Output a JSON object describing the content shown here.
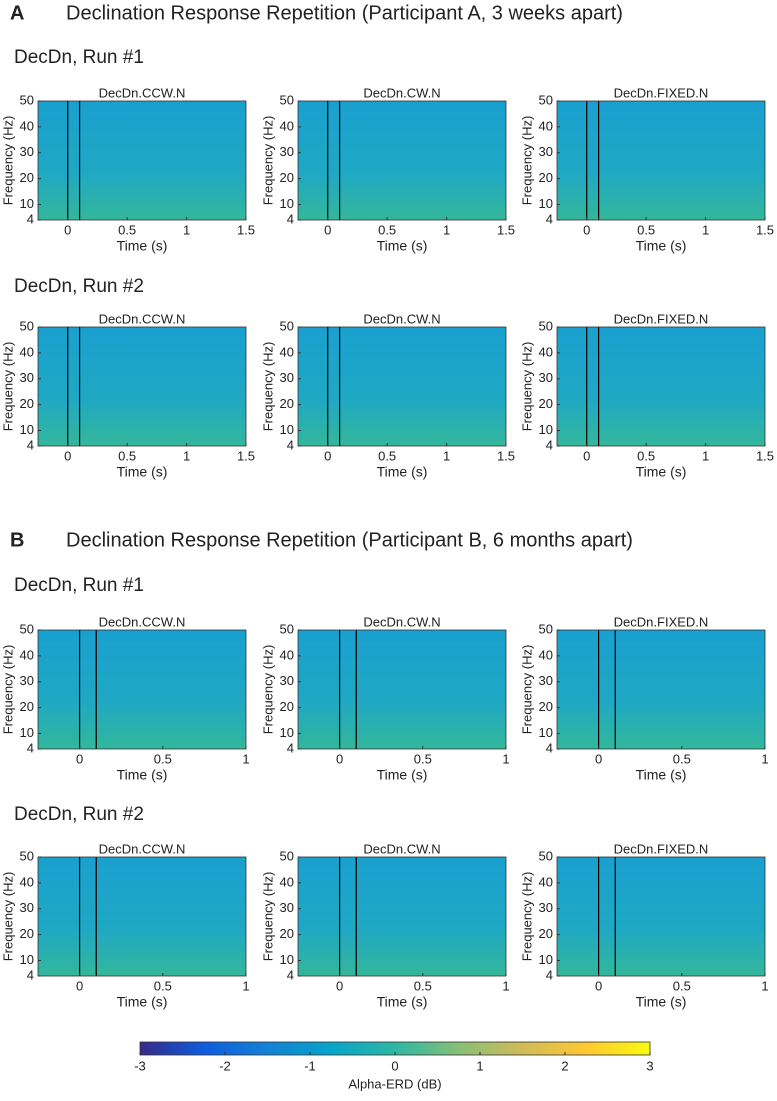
{
  "sections": [
    {
      "letter": "A",
      "title": "Declination Response Repetition (Participant A, 3 weeks apart)",
      "runs": [
        {
          "title": "DecDn, Run #1"
        },
        {
          "title": "DecDn, Run #2"
        }
      ]
    },
    {
      "letter": "B",
      "title": "Declination Response Repetition (Participant B, 6 months apart)",
      "runs": [
        {
          "title": "DecDn, Run #1"
        },
        {
          "title": "DecDn, Run #2"
        }
      ]
    }
  ],
  "chart_data": [
    {
      "type": "heatmap",
      "title": "DecDn.CCW.N",
      "xlabel": "Time (s)",
      "ylabel": "Frequency (Hz)",
      "xlim": [
        -0.25,
        1.5
      ],
      "xticks": [
        0,
        0.5,
        1,
        1.5
      ],
      "ylim": [
        4,
        50
      ],
      "yticks": [
        4,
        10,
        20,
        30,
        40,
        50
      ],
      "event_lines": [
        0,
        0.1
      ]
    },
    {
      "type": "heatmap",
      "title": "DecDn.CW.N",
      "xlabel": "Time (s)",
      "ylabel": "Frequency (Hz)",
      "xlim": [
        -0.25,
        1.5
      ],
      "xticks": [
        0,
        0.5,
        1,
        1.5
      ],
      "ylim": [
        4,
        50
      ],
      "yticks": [
        4,
        10,
        20,
        30,
        40,
        50
      ],
      "event_lines": [
        0,
        0.1
      ]
    },
    {
      "type": "heatmap",
      "title": "DecDn.FIXED.N",
      "xlabel": "Time (s)",
      "ylabel": "Frequency (Hz)",
      "xlim": [
        -0.25,
        1.5
      ],
      "xticks": [
        0,
        0.5,
        1,
        1.5
      ],
      "ylim": [
        4,
        50
      ],
      "yticks": [
        4,
        10,
        20,
        30,
        40,
        50
      ],
      "event_lines": [
        0,
        0.1
      ]
    },
    {
      "type": "heatmap",
      "title": "DecDn.CCW.N",
      "xlabel": "Time (s)",
      "ylabel": "Frequency (Hz)",
      "xlim": [
        -0.25,
        1.5
      ],
      "xticks": [
        0,
        0.5,
        1,
        1.5
      ],
      "ylim": [
        4,
        50
      ],
      "yticks": [
        4,
        10,
        20,
        30,
        40,
        50
      ],
      "event_lines": [
        0,
        0.1
      ]
    },
    {
      "type": "heatmap",
      "title": "DecDn.CW.N",
      "xlabel": "Time (s)",
      "ylabel": "Frequency (Hz)",
      "xlim": [
        -0.25,
        1.5
      ],
      "xticks": [
        0,
        0.5,
        1,
        1.5
      ],
      "ylim": [
        4,
        50
      ],
      "yticks": [
        4,
        10,
        20,
        30,
        40,
        50
      ],
      "event_lines": [
        0,
        0.1
      ]
    },
    {
      "type": "heatmap",
      "title": "DecDn.FIXED.N",
      "xlabel": "Time (s)",
      "ylabel": "Frequency (Hz)",
      "xlim": [
        -0.25,
        1.5
      ],
      "xticks": [
        0,
        0.5,
        1,
        1.5
      ],
      "ylim": [
        4,
        50
      ],
      "yticks": [
        4,
        10,
        20,
        30,
        40,
        50
      ],
      "event_lines": [
        0,
        0.1
      ]
    },
    {
      "type": "heatmap",
      "title": "DecDn.CCW.N",
      "xlabel": "Time (s)",
      "ylabel": "Frequency (Hz)",
      "xlim": [
        -0.25,
        1
      ],
      "xticks": [
        0,
        0.5,
        1
      ],
      "ylim": [
        4,
        50
      ],
      "yticks": [
        4,
        10,
        20,
        30,
        40,
        50
      ],
      "event_lines": [
        0,
        0.1
      ]
    },
    {
      "type": "heatmap",
      "title": "DecDn.CW.N",
      "xlabel": "Time (s)",
      "ylabel": "Frequency (Hz)",
      "xlim": [
        -0.25,
        1
      ],
      "xticks": [
        0,
        0.5,
        1
      ],
      "ylim": [
        4,
        50
      ],
      "yticks": [
        4,
        10,
        20,
        30,
        40,
        50
      ],
      "event_lines": [
        0,
        0.1
      ]
    },
    {
      "type": "heatmap",
      "title": "DecDn.FIXED.N",
      "xlabel": "Time (s)",
      "ylabel": "Frequency (Hz)",
      "xlim": [
        -0.25,
        1
      ],
      "xticks": [
        0,
        0.5,
        1
      ],
      "ylim": [
        4,
        50
      ],
      "yticks": [
        4,
        10,
        20,
        30,
        40,
        50
      ],
      "event_lines": [
        0,
        0.1
      ]
    },
    {
      "type": "heatmap",
      "title": "DecDn.CCW.N",
      "xlabel": "Time (s)",
      "ylabel": "Frequency (Hz)",
      "xlim": [
        -0.25,
        1
      ],
      "xticks": [
        0,
        0.5,
        1
      ],
      "ylim": [
        4,
        50
      ],
      "yticks": [
        4,
        10,
        20,
        30,
        40,
        50
      ],
      "event_lines": [
        0,
        0.1
      ]
    },
    {
      "type": "heatmap",
      "title": "DecDn.CW.N",
      "xlabel": "Time (s)",
      "ylabel": "Frequency (Hz)",
      "xlim": [
        -0.25,
        1
      ],
      "xticks": [
        0,
        0.5,
        1
      ],
      "ylim": [
        4,
        50
      ],
      "yticks": [
        4,
        10,
        20,
        30,
        40,
        50
      ],
      "event_lines": [
        0,
        0.1
      ]
    },
    {
      "type": "heatmap",
      "title": "DecDn.FIXED.N",
      "xlabel": "Time (s)",
      "ylabel": "Frequency (Hz)",
      "xlim": [
        -0.25,
        1
      ],
      "xticks": [
        0,
        0.5,
        1
      ],
      "ylim": [
        4,
        50
      ],
      "yticks": [
        4,
        10,
        20,
        30,
        40,
        50
      ],
      "event_lines": [
        0,
        0.1
      ]
    },
    {
      "type": "colorbar",
      "xlabel": "Alpha-ERD (dB)",
      "xlim": [
        -3,
        3
      ],
      "xticks": [
        -3,
        -2,
        -1,
        0,
        1,
        2,
        3
      ],
      "colors": [
        "#352a87",
        "#0f5cdd",
        "#1481d6",
        "#06a4ca",
        "#2eb7a4",
        "#87bf77",
        "#d1bb59",
        "#fec832",
        "#f9fb0e"
      ]
    }
  ]
}
